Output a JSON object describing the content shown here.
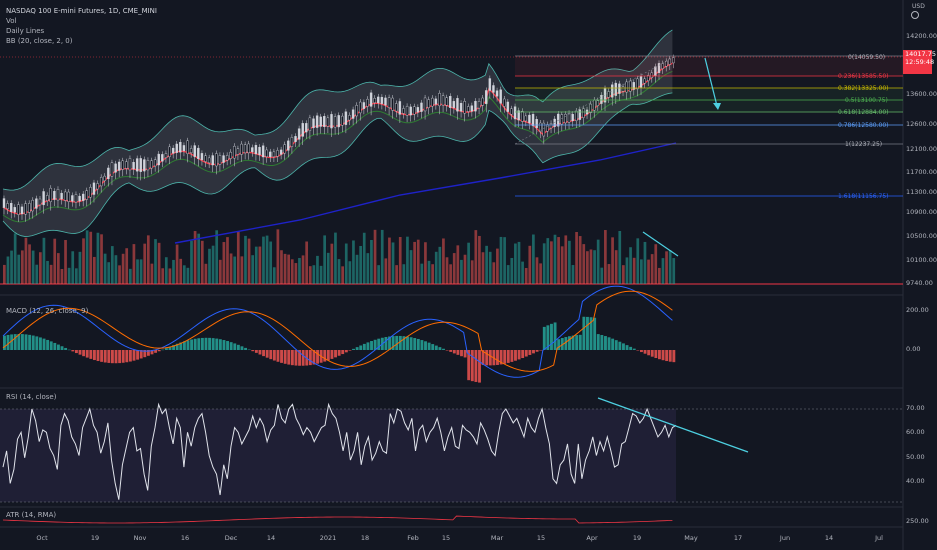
{
  "symbol": {
    "title": "NASDAQ 100 E-mini Futures, 1D, CME_MINI",
    "volume_label": "Vol",
    "daily_lines_label": "Daily Lines",
    "bb_label": "BB (20, close, 2, 0)",
    "currency": "USD"
  },
  "price_badge": {
    "price": "14017.75",
    "countdown": "12:59:48",
    "color": "#f23645"
  },
  "price_axis": [
    "14200.00",
    "13600.00",
    "12600.00",
    "12100.00",
    "11700.00",
    "11300.00",
    "10900.00",
    "10500.00",
    "10100.00",
    "9740.00"
  ],
  "fib_levels": [
    {
      "label": "0(14059.50)",
      "color": "#787b86"
    },
    {
      "label": "0.236(13585.50)",
      "color": "#f23645"
    },
    {
      "label": "0.382(13325.00)",
      "color": "#c9b800"
    },
    {
      "label": "0.5(13100.75)",
      "color": "#4caf50"
    },
    {
      "label": "0.618(12884.00)",
      "color": "#66bb6a"
    },
    {
      "label": "0.786(12580.00)",
      "color": "#5b9cf6"
    },
    {
      "label": "1(12237.25)",
      "color": "#787b86"
    },
    {
      "label": "1.618(11156.75)",
      "color": "#2962ff"
    }
  ],
  "macd": {
    "label": "MACD (12, 26, close, 9)",
    "axis": [
      "200.00",
      "0.00"
    ]
  },
  "rsi": {
    "label": "RSI (14, close)",
    "axis": [
      "70.00",
      "60.00",
      "50.00",
      "40.00"
    ],
    "values": [
      45,
      52,
      38,
      44,
      57,
      60,
      49,
      58,
      70,
      65,
      56,
      61,
      60,
      53,
      50,
      44,
      63,
      68,
      65,
      58,
      55,
      50,
      62,
      66,
      70,
      63,
      60,
      51,
      56,
      64,
      48,
      38,
      31,
      46,
      53,
      60,
      62,
      52,
      53,
      42,
      35,
      54,
      62,
      72,
      68,
      70,
      62,
      55,
      66,
      62,
      45,
      60,
      54,
      62,
      66,
      68,
      60,
      50,
      45,
      42,
      33,
      46,
      40,
      54,
      62,
      60,
      55,
      58,
      61,
      67,
      62,
      66,
      63,
      56,
      61,
      63,
      72,
      66,
      64,
      70,
      72,
      66,
      63,
      59,
      62,
      60,
      56,
      59,
      62,
      63,
      72,
      68,
      66,
      60,
      52,
      60,
      48,
      52,
      60,
      46,
      54,
      58,
      48,
      51,
      56,
      52,
      51,
      68,
      64,
      70,
      69,
      64,
      61,
      66,
      52,
      61,
      63,
      56,
      60,
      62,
      66,
      60,
      52,
      58,
      62,
      54,
      53,
      63,
      61,
      60,
      58,
      55,
      64,
      61,
      57,
      52,
      50,
      60,
      68,
      70,
      67,
      64,
      66,
      62,
      58,
      66,
      62,
      60,
      66,
      70,
      62,
      55,
      40,
      38,
      46,
      48,
      55,
      42,
      38,
      55,
      40,
      48,
      52,
      58,
      50,
      56,
      52,
      58,
      52,
      45,
      46,
      55,
      56,
      62,
      68,
      67,
      64,
      66,
      70,
      66,
      62,
      58,
      60,
      63,
      58,
      62,
      63
    ]
  },
  "atr": {
    "label": "ATR (14, RMA)",
    "axis": [
      "250.00"
    ]
  },
  "x_axis": [
    "Oct",
    "19",
    "Nov",
    "16",
    "Dec",
    "14",
    "2021",
    "18",
    "Feb",
    "15",
    "Mar",
    "15",
    "Apr",
    "19",
    "May",
    "17",
    "Jun",
    "14",
    "Jul"
  ]
}
